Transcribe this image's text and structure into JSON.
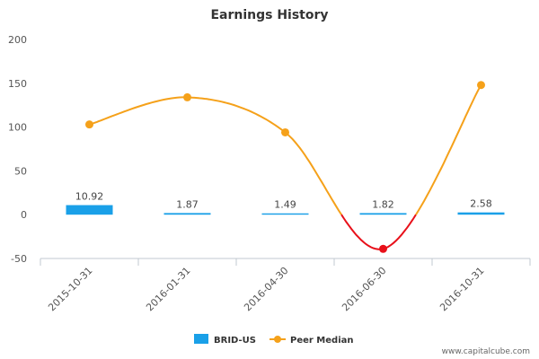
{
  "chart_data": {
    "type": "bar",
    "title": "Earnings History",
    "categories": [
      "2015-10-31",
      "2016-01-31",
      "2016-04-30",
      "2016-06-30",
      "2016-10-31"
    ],
    "ylim": [
      -50,
      200
    ],
    "yticks": [
      200,
      150,
      100,
      50,
      0,
      -50
    ],
    "grid": false,
    "legend_position": "bottom-center",
    "series": [
      {
        "name": "BRID-US",
        "kind": "bar",
        "color": "#1aa0e8",
        "values": [
          10.92,
          1.87,
          1.49,
          1.82,
          2.58
        ],
        "labels": [
          "10.92",
          "1.87",
          "1.49",
          "1.82",
          "2.58"
        ]
      },
      {
        "name": "Peer Median",
        "kind": "line",
        "color": "#f5a11a",
        "negative_color": "#e8101a",
        "values": [
          103,
          134,
          94,
          -39,
          148
        ]
      }
    ]
  },
  "credit": "www.capitalcube.com"
}
